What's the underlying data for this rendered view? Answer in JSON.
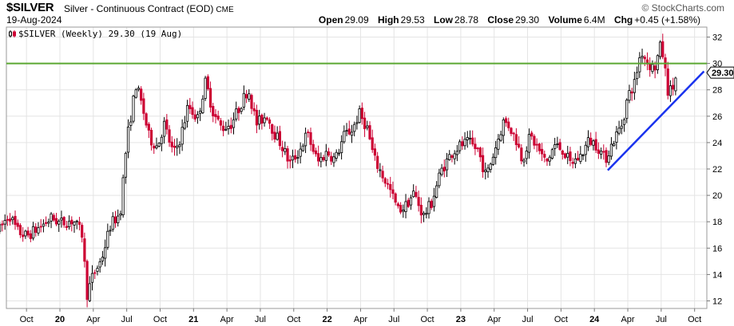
{
  "header": {
    "symbol": "$SILVER",
    "description": "Silver - Continuous Contract (EOD)",
    "exchange": "CME",
    "date": "19-Aug-2024",
    "brand": "© StockCharts.com",
    "open_label": "Open",
    "open": "29.09",
    "high_label": "High",
    "high": "29.53",
    "low_label": "Low",
    "low": "28.78",
    "close_label": "Close",
    "close": "29.30",
    "volume_label": "Volume",
    "volume": "6.4M",
    "chg_label": "Chg",
    "chg": "+0.45 (+1.58%)"
  },
  "legend": {
    "text": "$SILVER (Weekly) 29.30 (19 Aug)"
  },
  "price_tag": "29.30",
  "colors": {
    "up": "#000000",
    "down": "#cc0033",
    "horizontal_line": "#5aa832",
    "trend_line": "#1a33ee",
    "grid": "#e4e4e4"
  },
  "chart_data": {
    "type": "candlestick",
    "interval": "weekly",
    "ylim": [
      11.5,
      33
    ],
    "y_ticks": [
      12,
      14,
      16,
      18,
      20,
      22,
      24,
      26,
      28,
      30,
      32
    ],
    "x_ticks": [
      {
        "label": "Oct",
        "t": 0.75
      },
      {
        "label": "20",
        "t": 1.0
      },
      {
        "label": "Apr",
        "t": 1.25
      },
      {
        "label": "Jul",
        "t": 1.5
      },
      {
        "label": "Oct",
        "t": 1.75
      },
      {
        "label": "21",
        "t": 2.0
      },
      {
        "label": "Apr",
        "t": 2.25
      },
      {
        "label": "Jul",
        "t": 2.5
      },
      {
        "label": "Oct",
        "t": 2.75
      },
      {
        "label": "22",
        "t": 3.0
      },
      {
        "label": "Apr",
        "t": 3.25
      },
      {
        "label": "Jul",
        "t": 3.5
      },
      {
        "label": "Oct",
        "t": 3.75
      },
      {
        "label": "23",
        "t": 4.0
      },
      {
        "label": "Apr",
        "t": 4.25
      },
      {
        "label": "Jul",
        "t": 4.5
      },
      {
        "label": "Oct",
        "t": 4.75
      },
      {
        "label": "24",
        "t": 5.0
      },
      {
        "label": "Apr",
        "t": 5.25
      },
      {
        "label": "Jul",
        "t": 5.5
      },
      {
        "label": "Oct",
        "t": 5.75
      }
    ],
    "time_range": [
      0.55,
      5.82
    ],
    "anchors": [
      [
        0.55,
        17.4
      ],
      [
        0.62,
        18.6
      ],
      [
        0.68,
        17.3
      ],
      [
        0.75,
        16.9
      ],
      [
        0.85,
        17.6
      ],
      [
        0.94,
        18.3
      ],
      [
        1.0,
        17.9
      ],
      [
        1.1,
        18.1
      ],
      [
        1.17,
        17.0
      ],
      [
        1.2,
        12.4
      ],
      [
        1.25,
        14.0
      ],
      [
        1.31,
        15.1
      ],
      [
        1.38,
        17.8
      ],
      [
        1.45,
        18.6
      ],
      [
        1.5,
        24.1
      ],
      [
        1.57,
        28.4
      ],
      [
        1.62,
        26.6
      ],
      [
        1.67,
        24.3
      ],
      [
        1.73,
        23.7
      ],
      [
        1.78,
        25.4
      ],
      [
        1.85,
        23.1
      ],
      [
        1.9,
        24.3
      ],
      [
        1.96,
        26.8
      ],
      [
        2.03,
        25.8
      ],
      [
        2.09,
        28.6
      ],
      [
        2.15,
        26.2
      ],
      [
        2.21,
        25.1
      ],
      [
        2.28,
        25.4
      ],
      [
        2.34,
        26.6
      ],
      [
        2.41,
        28.1
      ],
      [
        2.47,
        25.4
      ],
      [
        2.55,
        26.1
      ],
      [
        2.6,
        24.8
      ],
      [
        2.66,
        23.8
      ],
      [
        2.72,
        22.4
      ],
      [
        2.79,
        23.3
      ],
      [
        2.85,
        24.7
      ],
      [
        2.93,
        22.5
      ],
      [
        3.0,
        23.3
      ],
      [
        3.06,
        22.7
      ],
      [
        3.13,
        24.6
      ],
      [
        3.19,
        25.0
      ],
      [
        3.24,
        26.2
      ],
      [
        3.3,
        25.1
      ],
      [
        3.35,
        22.8
      ],
      [
        3.41,
        21.6
      ],
      [
        3.47,
        20.4
      ],
      [
        3.53,
        18.9
      ],
      [
        3.58,
        19.1
      ],
      [
        3.65,
        20.2
      ],
      [
        3.72,
        18.4
      ],
      [
        3.78,
        19.4
      ],
      [
        3.85,
        21.8
      ],
      [
        3.93,
        23.2
      ],
      [
        4.0,
        23.8
      ],
      [
        4.06,
        24.0
      ],
      [
        4.13,
        23.4
      ],
      [
        4.19,
        21.4
      ],
      [
        4.25,
        23.3
      ],
      [
        4.32,
        25.6
      ],
      [
        4.36,
        25.3
      ],
      [
        4.42,
        24.1
      ],
      [
        4.46,
        22.7
      ],
      [
        4.52,
        24.5
      ],
      [
        4.58,
        23.5
      ],
      [
        4.64,
        22.4
      ],
      [
        4.7,
        23.8
      ],
      [
        4.76,
        23.5
      ],
      [
        4.82,
        22.4
      ],
      [
        4.9,
        23.0
      ],
      [
        4.96,
        24.2
      ],
      [
        5.02,
        23.8
      ],
      [
        5.08,
        22.7
      ],
      [
        5.15,
        24.3
      ],
      [
        5.21,
        25.5
      ],
      [
        5.25,
        27.5
      ],
      [
        5.3,
        28.5
      ],
      [
        5.35,
        31.0
      ],
      [
        5.4,
        30.0
      ],
      [
        5.45,
        29.6
      ],
      [
        5.5,
        31.5
      ],
      [
        5.55,
        28.0
      ],
      [
        5.58,
        27.9
      ],
      [
        5.62,
        29.3
      ]
    ],
    "horizontal_line": {
      "y": 30.0
    },
    "trend_line": {
      "from": [
        5.1,
        21.9
      ],
      "to": [
        5.82,
        29.4
      ]
    }
  }
}
